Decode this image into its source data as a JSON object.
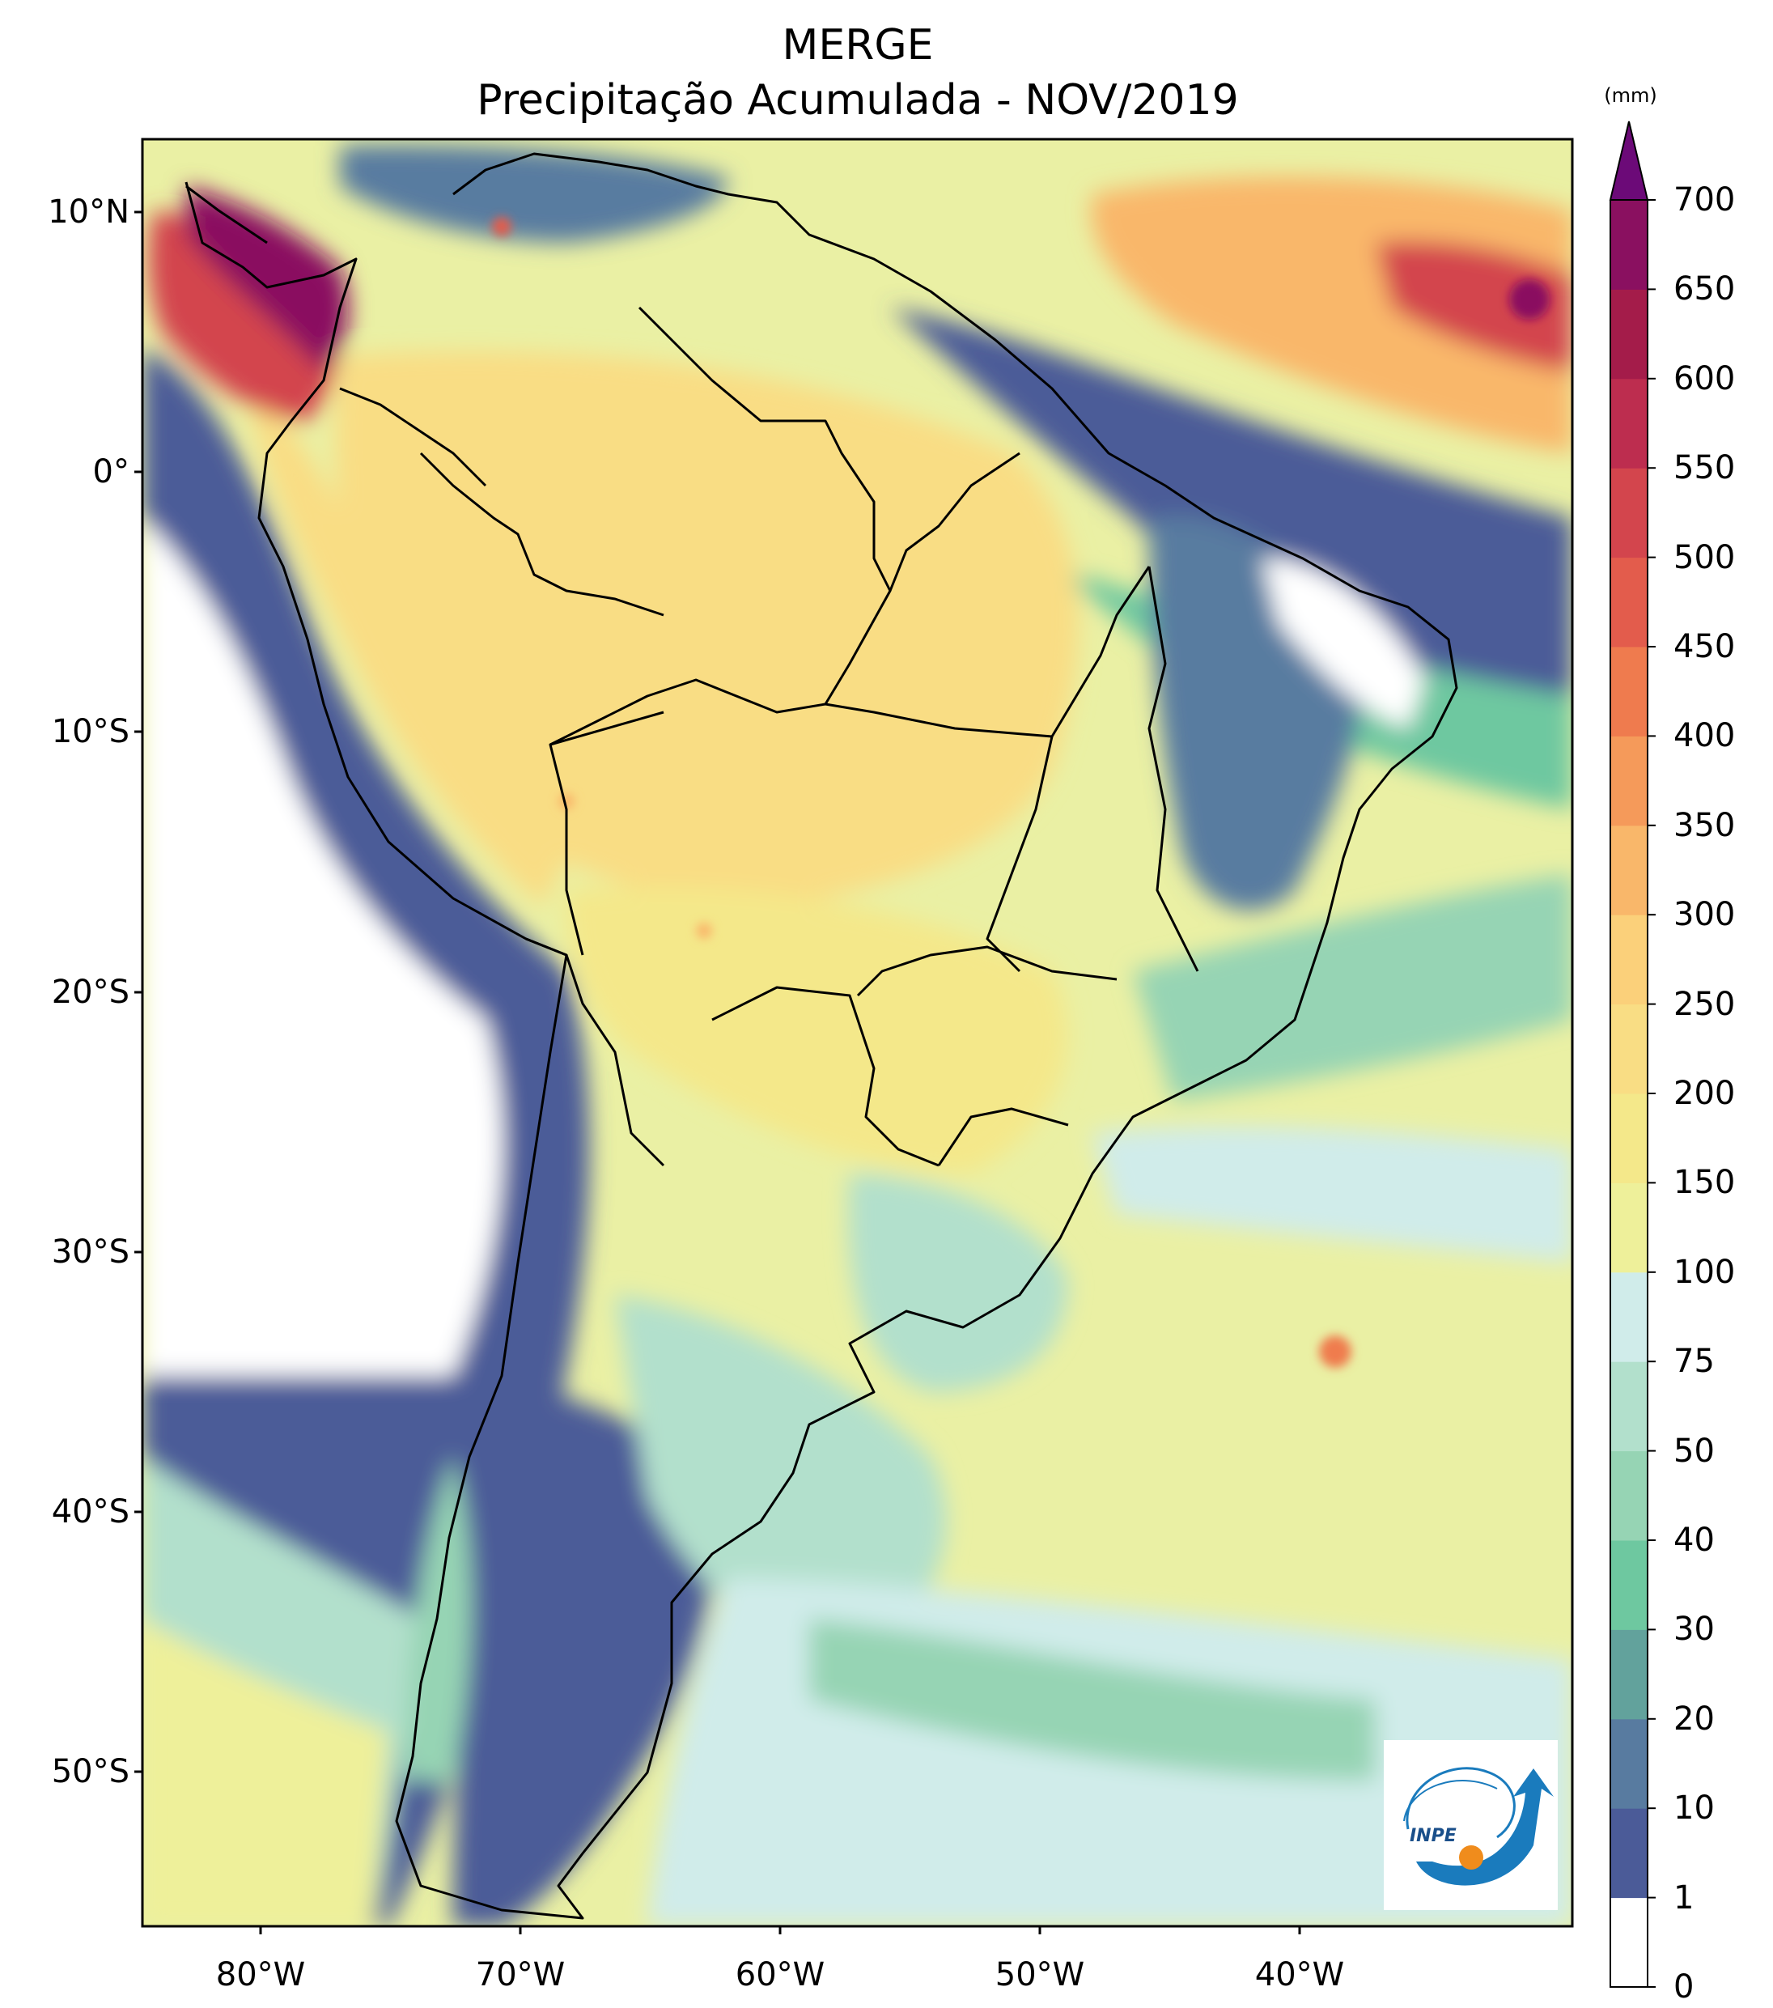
{
  "title": {
    "line1": "MERGE",
    "line2": "Precipitação Acumulada - NOV/2019"
  },
  "colorbar": {
    "unit": "(mm)",
    "levels": [
      "0",
      "1",
      "10",
      "20",
      "30",
      "40",
      "50",
      "75",
      "100",
      "150",
      "200",
      "250",
      "300",
      "350",
      "400",
      "450",
      "500",
      "550",
      "600",
      "650",
      "700"
    ],
    "colors": [
      "#ffffff",
      "#4b5b98",
      "#587ba0",
      "#62a29c",
      "#6ec8a0",
      "#96d4b4",
      "#b2e0cc",
      "#d0ecea",
      "#eef09a",
      "#f4e88a",
      "#f9dd84",
      "#fbd07a",
      "#f9b76a",
      "#f59a5a",
      "#ef7b4e",
      "#e35c4c",
      "#d3454d",
      "#bd2d4f",
      "#a41c4a",
      "#8a1060",
      "#6c0a78"
    ],
    "extend_color": "#6c0a78"
  },
  "axes": {
    "lat_labels": [
      "10°N",
      "0°",
      "10°S",
      "20°S",
      "30°S",
      "40°S",
      "50°S"
    ],
    "lon_labels": [
      "80°W",
      "70°W",
      "60°W",
      "50°W",
      "40°W"
    ]
  },
  "logo": {
    "text": "INPE"
  }
}
